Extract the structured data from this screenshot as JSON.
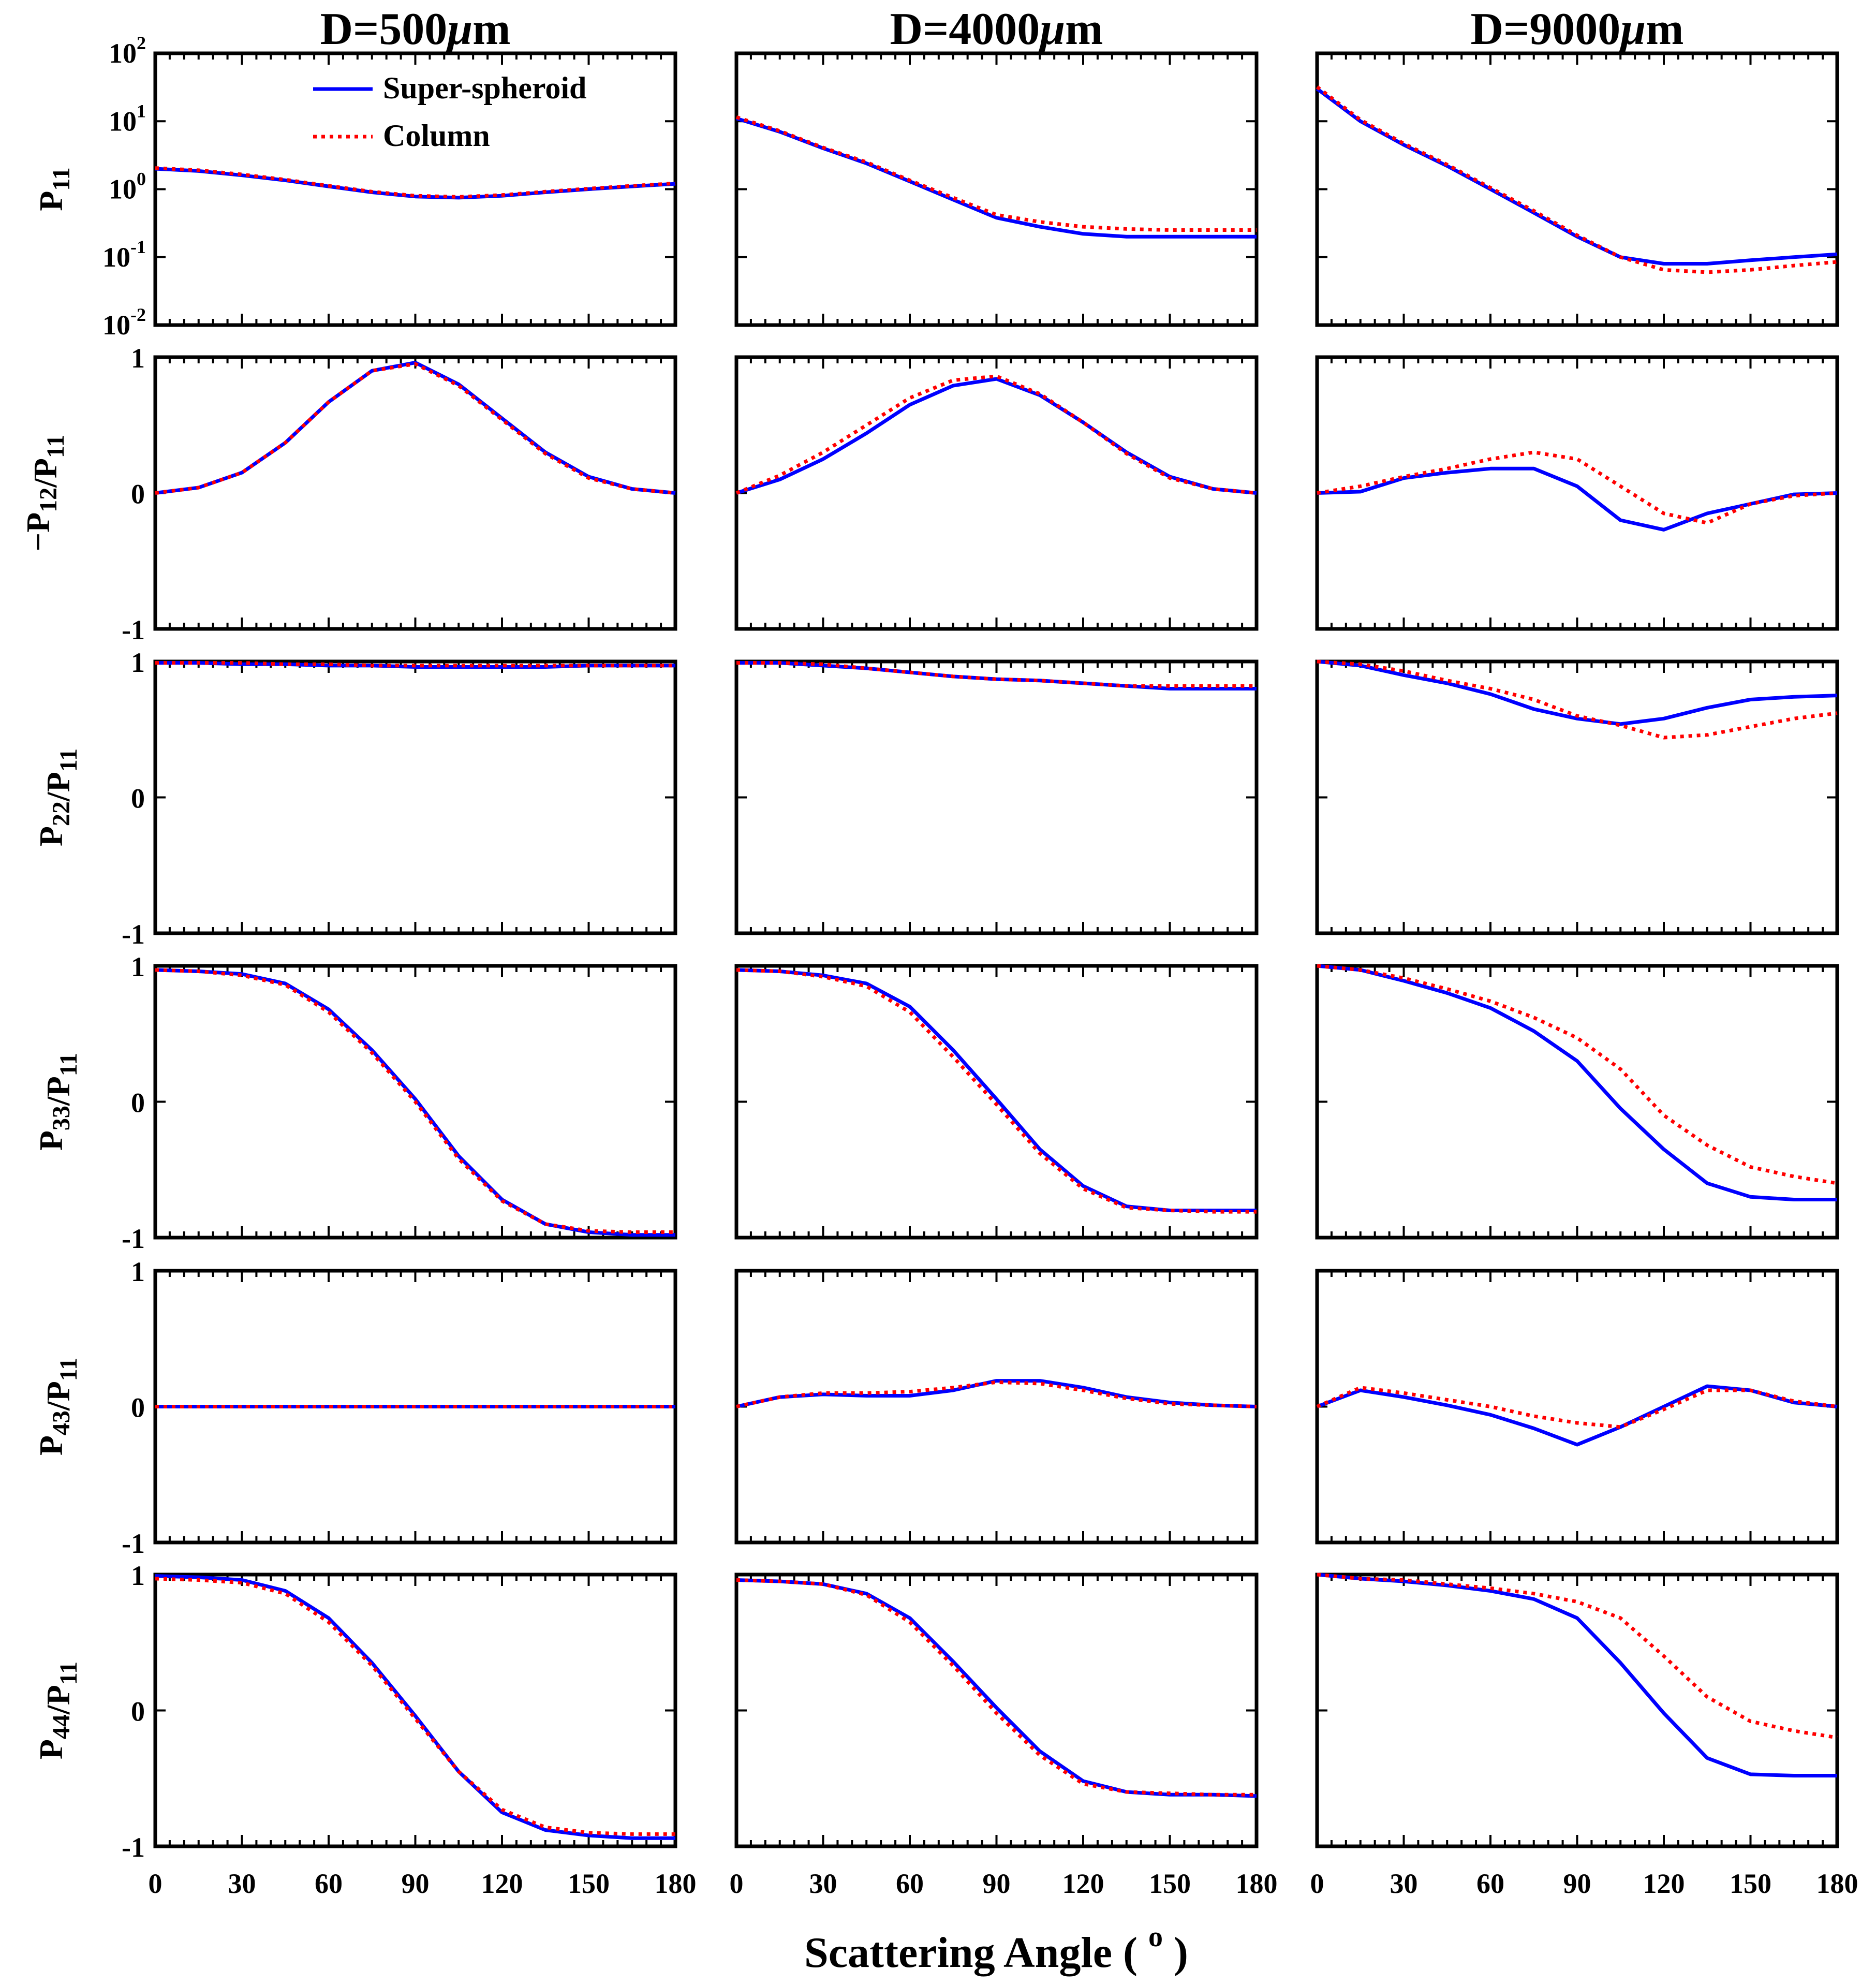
{
  "chart_data": {
    "type": "line",
    "xlabel": "Scattering Angle ( o )",
    "xlim": [
      0,
      180
    ],
    "xticks": [
      0,
      30,
      60,
      90,
      120,
      150,
      180
    ],
    "legend": {
      "position": "top-left of first panel",
      "entries": [
        "Super-spheroid",
        "Column"
      ]
    },
    "colors": {
      "Super-spheroid": "#0000ff",
      "Column": "#ff0000"
    },
    "columns": [
      "D=500μm",
      "D=4000μm",
      "D=9000μm"
    ],
    "rows": [
      {
        "ylabel": "P11",
        "scale": "log",
        "ylim": [
          0.01,
          100
        ],
        "yticks": [
          "10^2",
          "10^1",
          "10^0",
          "10^-1",
          "10^-2"
        ]
      },
      {
        "ylabel": "−P12/P11",
        "scale": "linear",
        "ylim": [
          -1,
          1
        ],
        "yticks": [
          "1",
          "0",
          "-1"
        ]
      },
      {
        "ylabel": "P22/P11",
        "scale": "linear",
        "ylim": [
          -1,
          1
        ],
        "yticks": [
          "1",
          "0",
          "-1"
        ]
      },
      {
        "ylabel": "P33/P11",
        "scale": "linear",
        "ylim": [
          -1,
          1
        ],
        "yticks": [
          "1",
          "0",
          "-1"
        ]
      },
      {
        "ylabel": "P43/P11",
        "scale": "linear",
        "ylim": [
          -1,
          1
        ],
        "yticks": [
          "1",
          "0",
          "-1"
        ]
      },
      {
        "ylabel": "P44/P11",
        "scale": "linear",
        "ylim": [
          -1,
          1
        ],
        "yticks": [
          "1",
          "0",
          "-1"
        ]
      }
    ],
    "x": [
      0,
      15,
      30,
      45,
      60,
      75,
      90,
      105,
      120,
      135,
      150,
      165,
      180
    ],
    "panels": [
      [
        {
          "series": [
            {
              "name": "Super-spheroid",
              "values": [
                2.0,
                1.85,
                1.6,
                1.35,
                1.1,
                0.9,
                0.78,
                0.75,
                0.8,
                0.9,
                1.0,
                1.1,
                1.2
              ]
            },
            {
              "name": "Column",
              "values": [
                2.05,
                1.9,
                1.65,
                1.38,
                1.12,
                0.92,
                0.8,
                0.77,
                0.82,
                0.92,
                1.02,
                1.12,
                1.22
              ]
            }
          ]
        },
        {
          "series": [
            {
              "name": "Super-spheroid",
              "values": [
                11,
                7,
                4,
                2.4,
                1.3,
                0.7,
                0.38,
                0.28,
                0.22,
                0.2,
                0.2,
                0.2,
                0.2
              ]
            },
            {
              "name": "Column",
              "values": [
                11.5,
                7.2,
                4.1,
                2.5,
                1.35,
                0.75,
                0.42,
                0.33,
                0.28,
                0.26,
                0.25,
                0.25,
                0.25
              ]
            }
          ]
        },
        {
          "series": [
            {
              "name": "Super-spheroid",
              "values": [
                30,
                10,
                4.5,
                2.2,
                1.0,
                0.45,
                0.2,
                0.1,
                0.08,
                0.08,
                0.09,
                0.1,
                0.11
              ]
            },
            {
              "name": "Column",
              "values": [
                32,
                10.5,
                4.7,
                2.3,
                1.05,
                0.48,
                0.21,
                0.1,
                0.065,
                0.06,
                0.065,
                0.075,
                0.085
              ]
            }
          ]
        }
      ],
      [
        {
          "series": [
            {
              "name": "Super-spheroid",
              "values": [
                0,
                0.04,
                0.15,
                0.37,
                0.67,
                0.9,
                0.96,
                0.8,
                0.55,
                0.3,
                0.12,
                0.03,
                0
              ]
            },
            {
              "name": "Column",
              "values": [
                0,
                0.04,
                0.15,
                0.37,
                0.67,
                0.9,
                0.95,
                0.79,
                0.54,
                0.29,
                0.11,
                0.03,
                0
              ]
            }
          ]
        },
        {
          "series": [
            {
              "name": "Super-spheroid",
              "values": [
                0,
                0.1,
                0.25,
                0.44,
                0.65,
                0.79,
                0.84,
                0.72,
                0.52,
                0.3,
                0.12,
                0.03,
                0
              ]
            },
            {
              "name": "Column",
              "values": [
                0,
                0.13,
                0.3,
                0.5,
                0.7,
                0.83,
                0.86,
                0.73,
                0.52,
                0.29,
                0.11,
                0.03,
                0
              ]
            }
          ]
        },
        {
          "series": [
            {
              "name": "Super-spheroid",
              "values": [
                0,
                0.01,
                0.11,
                0.15,
                0.18,
                0.18,
                0.05,
                -0.2,
                -0.27,
                -0.15,
                -0.08,
                -0.01,
                0
              ]
            },
            {
              "name": "Column",
              "values": [
                0,
                0.05,
                0.12,
                0.18,
                0.25,
                0.3,
                0.25,
                0.05,
                -0.15,
                -0.22,
                -0.08,
                -0.02,
                0
              ]
            }
          ]
        }
      ],
      [
        {
          "series": [
            {
              "name": "Super-spheroid",
              "values": [
                0.99,
                0.99,
                0.98,
                0.98,
                0.97,
                0.97,
                0.96,
                0.96,
                0.96,
                0.96,
                0.97,
                0.97,
                0.97
              ]
            },
            {
              "name": "Column",
              "values": [
                0.99,
                0.99,
                0.99,
                0.98,
                0.98,
                0.97,
                0.97,
                0.97,
                0.97,
                0.97,
                0.97,
                0.97,
                0.97
              ]
            }
          ]
        },
        {
          "series": [
            {
              "name": "Super-spheroid",
              "values": [
                0.99,
                0.99,
                0.97,
                0.95,
                0.92,
                0.89,
                0.87,
                0.86,
                0.84,
                0.82,
                0.8,
                0.8,
                0.8
              ]
            },
            {
              "name": "Column",
              "values": [
                0.99,
                0.99,
                0.98,
                0.95,
                0.92,
                0.89,
                0.87,
                0.86,
                0.84,
                0.82,
                0.82,
                0.82,
                0.82
              ]
            }
          ]
        },
        {
          "series": [
            {
              "name": "Super-spheroid",
              "values": [
                1,
                0.97,
                0.9,
                0.84,
                0.76,
                0.65,
                0.58,
                0.54,
                0.58,
                0.66,
                0.72,
                0.74,
                0.75
              ]
            },
            {
              "name": "Column",
              "values": [
                1,
                0.98,
                0.93,
                0.86,
                0.8,
                0.72,
                0.6,
                0.53,
                0.44,
                0.46,
                0.52,
                0.58,
                0.62
              ]
            }
          ]
        }
      ],
      [
        {
          "series": [
            {
              "name": "Super-spheroid",
              "values": [
                0.97,
                0.96,
                0.94,
                0.87,
                0.68,
                0.38,
                0.02,
                -0.4,
                -0.72,
                -0.9,
                -0.96,
                -0.98,
                -0.98
              ]
            },
            {
              "name": "Column",
              "values": [
                0.97,
                0.96,
                0.93,
                0.86,
                0.66,
                0.36,
                0.0,
                -0.42,
                -0.73,
                -0.9,
                -0.95,
                -0.96,
                -0.96
              ]
            }
          ]
        },
        {
          "series": [
            {
              "name": "Super-spheroid",
              "values": [
                0.97,
                0.96,
                0.93,
                0.87,
                0.7,
                0.38,
                0.02,
                -0.35,
                -0.62,
                -0.77,
                -0.8,
                -0.8,
                -0.8
              ]
            },
            {
              "name": "Column",
              "values": [
                0.97,
                0.96,
                0.92,
                0.85,
                0.66,
                0.33,
                -0.02,
                -0.38,
                -0.64,
                -0.78,
                -0.8,
                -0.81,
                -0.81
              ]
            }
          ]
        },
        {
          "series": [
            {
              "name": "Super-spheroid",
              "values": [
                1,
                0.97,
                0.89,
                0.8,
                0.69,
                0.52,
                0.3,
                -0.05,
                -0.35,
                -0.6,
                -0.7,
                -0.72,
                -0.72
              ]
            },
            {
              "name": "Column",
              "values": [
                1,
                0.97,
                0.91,
                0.83,
                0.74,
                0.62,
                0.47,
                0.24,
                -0.1,
                -0.32,
                -0.48,
                -0.55,
                -0.6
              ]
            }
          ]
        }
      ],
      [
        {
          "series": [
            {
              "name": "Super-spheroid",
              "values": [
                0,
                0,
                0,
                0,
                0,
                0,
                0,
                0,
                0,
                0,
                0,
                0,
                0
              ]
            },
            {
              "name": "Column",
              "values": [
                0,
                0,
                0,
                0,
                0,
                0,
                0,
                0,
                0,
                0,
                0,
                0,
                0
              ]
            }
          ]
        },
        {
          "series": [
            {
              "name": "Super-spheroid",
              "values": [
                0,
                0.07,
                0.09,
                0.08,
                0.08,
                0.12,
                0.19,
                0.19,
                0.14,
                0.07,
                0.03,
                0.01,
                0
              ]
            },
            {
              "name": "Column",
              "values": [
                0,
                0.07,
                0.1,
                0.1,
                0.11,
                0.14,
                0.18,
                0.17,
                0.12,
                0.06,
                0.02,
                0.01,
                0
              ]
            }
          ]
        },
        {
          "series": [
            {
              "name": "Super-spheroid",
              "values": [
                0,
                0.12,
                0.07,
                0.01,
                -0.06,
                -0.16,
                -0.28,
                -0.15,
                0.0,
                0.15,
                0.12,
                0.03,
                0
              ]
            },
            {
              "name": "Column",
              "values": [
                0,
                0.14,
                0.1,
                0.05,
                0.0,
                -0.07,
                -0.12,
                -0.15,
                -0.02,
                0.12,
                0.12,
                0.04,
                0
              ]
            }
          ]
        }
      ],
      [
        {
          "series": [
            {
              "name": "Super-spheroid",
              "values": [
                0.99,
                0.98,
                0.96,
                0.88,
                0.68,
                0.35,
                -0.04,
                -0.45,
                -0.75,
                -0.88,
                -0.92,
                -0.94,
                -0.94
              ]
            },
            {
              "name": "Column",
              "values": [
                0.97,
                0.96,
                0.94,
                0.86,
                0.65,
                0.33,
                -0.06,
                -0.45,
                -0.73,
                -0.86,
                -0.9,
                -0.91,
                -0.91
              ]
            }
          ]
        },
        {
          "series": [
            {
              "name": "Super-spheroid",
              "values": [
                0.96,
                0.95,
                0.93,
                0.86,
                0.68,
                0.36,
                0.02,
                -0.3,
                -0.52,
                -0.6,
                -0.62,
                -0.62,
                -0.63
              ]
            },
            {
              "name": "Column",
              "values": [
                0.96,
                0.95,
                0.93,
                0.85,
                0.65,
                0.33,
                -0.02,
                -0.33,
                -0.54,
                -0.6,
                -0.61,
                -0.62,
                -0.62
              ]
            }
          ]
        },
        {
          "series": [
            {
              "name": "Super-spheroid",
              "values": [
                1,
                0.97,
                0.95,
                0.92,
                0.88,
                0.82,
                0.68,
                0.35,
                -0.02,
                -0.35,
                -0.47,
                -0.48,
                -0.48
              ]
            },
            {
              "name": "Column",
              "values": [
                1,
                0.97,
                0.96,
                0.93,
                0.9,
                0.86,
                0.8,
                0.68,
                0.4,
                0.1,
                -0.08,
                -0.15,
                -0.2
              ]
            }
          ]
        }
      ]
    ]
  }
}
